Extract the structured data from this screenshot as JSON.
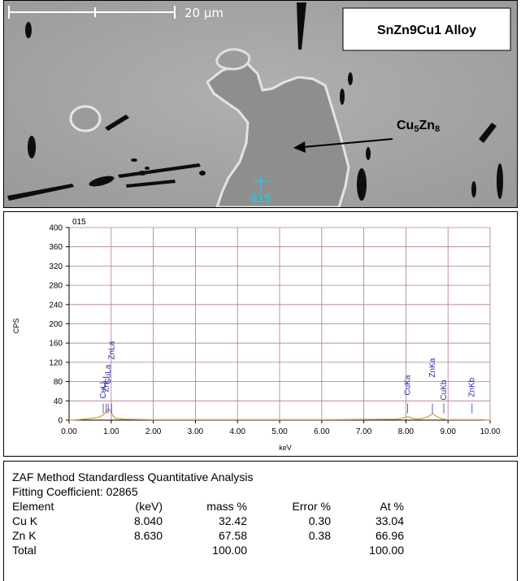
{
  "micrograph": {
    "scale_bar_label": "20 µm",
    "alloy_label": "SnZn9Cu1 Alloy",
    "phase_label": {
      "base1": "Cu",
      "sub1": "5",
      "base2": "Zn",
      "sub2": "8"
    },
    "spot_label": "015",
    "colors": {
      "matrix": "#a6a6a6",
      "phase": "#8a8a8a",
      "dark": "#0d0d0d",
      "spot": "#29c4e0"
    }
  },
  "chart_data": {
    "type": "line",
    "title": "015",
    "xlabel": "keV",
    "ylabel": "CPS",
    "xlim": [
      0.0,
      10.0
    ],
    "ylim": [
      0,
      400
    ],
    "x_ticks": [
      "0.00",
      "1.00",
      "2.00",
      "3.00",
      "4.00",
      "5.00",
      "6.00",
      "7.00",
      "8.00",
      "9.00",
      "10.00"
    ],
    "y_ticks": [
      "0",
      "40",
      "80",
      "120",
      "160",
      "200",
      "240",
      "280",
      "320",
      "360",
      "400"
    ],
    "grid": true,
    "series": [
      {
        "color": "#d9a640",
        "x": [
          0.0,
          0.2,
          0.5,
          0.7,
          0.8,
          0.9,
          0.93,
          0.96,
          1.0,
          1.05,
          1.1,
          1.3,
          2.0,
          4.0,
          6.0,
          7.8,
          7.95,
          8.04,
          8.15,
          8.3,
          8.5,
          8.6,
          8.63,
          8.7,
          8.85,
          8.9,
          9.0,
          9.57,
          9.8,
          10.0
        ],
        "values": [
          0,
          1,
          3,
          6,
          10,
          18,
          24,
          22,
          15,
          8,
          4,
          2,
          1,
          1,
          1,
          2,
          5,
          7,
          4,
          2,
          6,
          11,
          14,
          9,
          3,
          2,
          1,
          1,
          1,
          0
        ]
      }
    ],
    "peak_labels": [
      {
        "label": "CuLl",
        "x": 0.81
      },
      {
        "label": "CuLa",
        "x": 0.93
      },
      {
        "label": "ZnLl",
        "x": 0.88
      },
      {
        "label": "ZnLa",
        "x": 1.01
      },
      {
        "label": "CuKa",
        "x": 8.04
      },
      {
        "label": "ZnKa",
        "x": 8.63
      },
      {
        "label": "CuKb",
        "x": 8.9
      },
      {
        "label": "ZnKb",
        "x": 9.57
      }
    ]
  },
  "quant": {
    "method": "ZAF Method Standardless Quantitative Analysis",
    "fitting": "Fitting Coefficient: 02865",
    "headers": [
      "Element",
      "(keV)",
      "mass %",
      "Error %",
      "At %"
    ],
    "rows": [
      [
        "Cu K",
        "8.040",
        "32.42",
        "0.30",
        "33.04"
      ],
      [
        "Zn K",
        "8.630",
        "67.58",
        "0.38",
        "66.96"
      ]
    ],
    "total": [
      "Total",
      "",
      "100.00",
      "",
      "100.00"
    ]
  }
}
